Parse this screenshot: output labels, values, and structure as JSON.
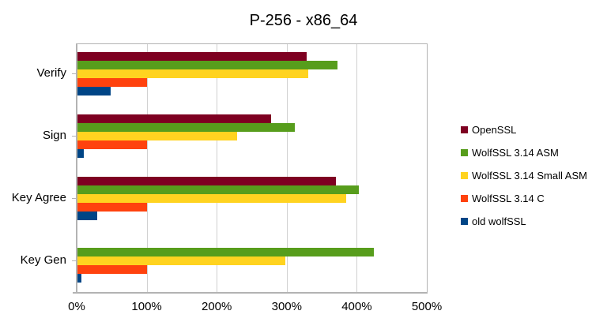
{
  "chart_data": {
    "type": "bar",
    "orientation": "horizontal",
    "title": "P-256 - x86_64",
    "xlabel": "",
    "ylabel": "",
    "xlim": [
      0,
      500
    ],
    "x_ticks": [
      "0%",
      "100%",
      "200%",
      "300%",
      "400%",
      "500%"
    ],
    "grid": true,
    "legend_position": "right",
    "categories": [
      "Verify",
      "Sign",
      "Key Agree",
      "Key Gen"
    ],
    "series": [
      {
        "name": "OpenSSL",
        "color": "#7E0021",
        "values": [
          328,
          278,
          370,
          0
        ]
      },
      {
        "name": "WolfSSL 3.14 ASM",
        "color": "#579D1C",
        "values": [
          372,
          311,
          403,
          424
        ]
      },
      {
        "name": "WolfSSL 3.14 Small ASM",
        "color": "#FFD320",
        "values": [
          331,
          229,
          385,
          298
        ]
      },
      {
        "name": "WolfSSL 3.14 C",
        "color": "#FF420E",
        "values": [
          100,
          100,
          100,
          100
        ]
      },
      {
        "name": "old wolfSSL",
        "color": "#004586",
        "values": [
          49,
          10,
          29,
          7
        ]
      }
    ]
  }
}
